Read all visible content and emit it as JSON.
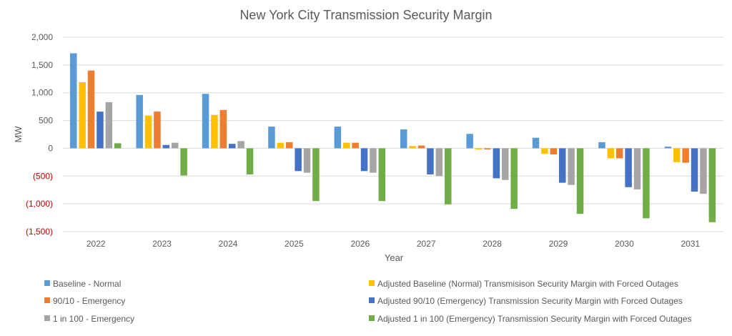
{
  "chart_data": {
    "type": "bar",
    "title": "New York City Transmission Security Margin",
    "xlabel": "Year",
    "ylabel": "MW",
    "ylim": [
      -1500,
      2000
    ],
    "yticks": [
      2000,
      1500,
      1000,
      500,
      0,
      -500,
      -1000,
      -1500
    ],
    "ytick_labels": [
      "2,000",
      "1,500",
      "1,000",
      "500",
      "0",
      "(500)",
      "(1,000)",
      "(1,500)"
    ],
    "negative_tick_color": "#c00000",
    "grid": true,
    "legend_position": "bottom",
    "categories": [
      "2022",
      "2023",
      "2024",
      "2025",
      "2026",
      "2027",
      "2028",
      "2029",
      "2030",
      "2031"
    ],
    "series": [
      {
        "name": "Baseline - Normal",
        "color": "#5b9bd5",
        "values": [
          1710,
          960,
          980,
          390,
          390,
          340,
          260,
          190,
          110,
          30
        ]
      },
      {
        "name": "Adjusted Baseline (Normal) Transmisison Security Margin with Forced Outages",
        "color": "#ffc000",
        "values": [
          1190,
          590,
          600,
          100,
          100,
          40,
          -20,
          -100,
          -180,
          -250
        ]
      },
      {
        "name": "90/10 - Emergency",
        "color": "#ed7d31",
        "values": [
          1400,
          660,
          690,
          110,
          100,
          50,
          -20,
          -110,
          -180,
          -260
        ]
      },
      {
        "name": "Adjusted 90/10 (Emergency) Transmission Security Margin with Forced Outages",
        "color": "#4472c4",
        "values": [
          660,
          60,
          80,
          -410,
          -410,
          -470,
          -540,
          -620,
          -700,
          -780
        ]
      },
      {
        "name": "1 in 100 - Emergency",
        "color": "#a5a5a5",
        "values": [
          830,
          100,
          130,
          -440,
          -440,
          -500,
          -570,
          -660,
          -740,
          -820
        ]
      },
      {
        "name": "Adjusted 1 in 100 (Emergency) Transmission Security Margin with Forced Outages",
        "color": "#70ad47",
        "values": [
          90,
          -490,
          -470,
          -950,
          -950,
          -1010,
          -1090,
          -1180,
          -1260,
          -1330
        ]
      }
    ]
  }
}
